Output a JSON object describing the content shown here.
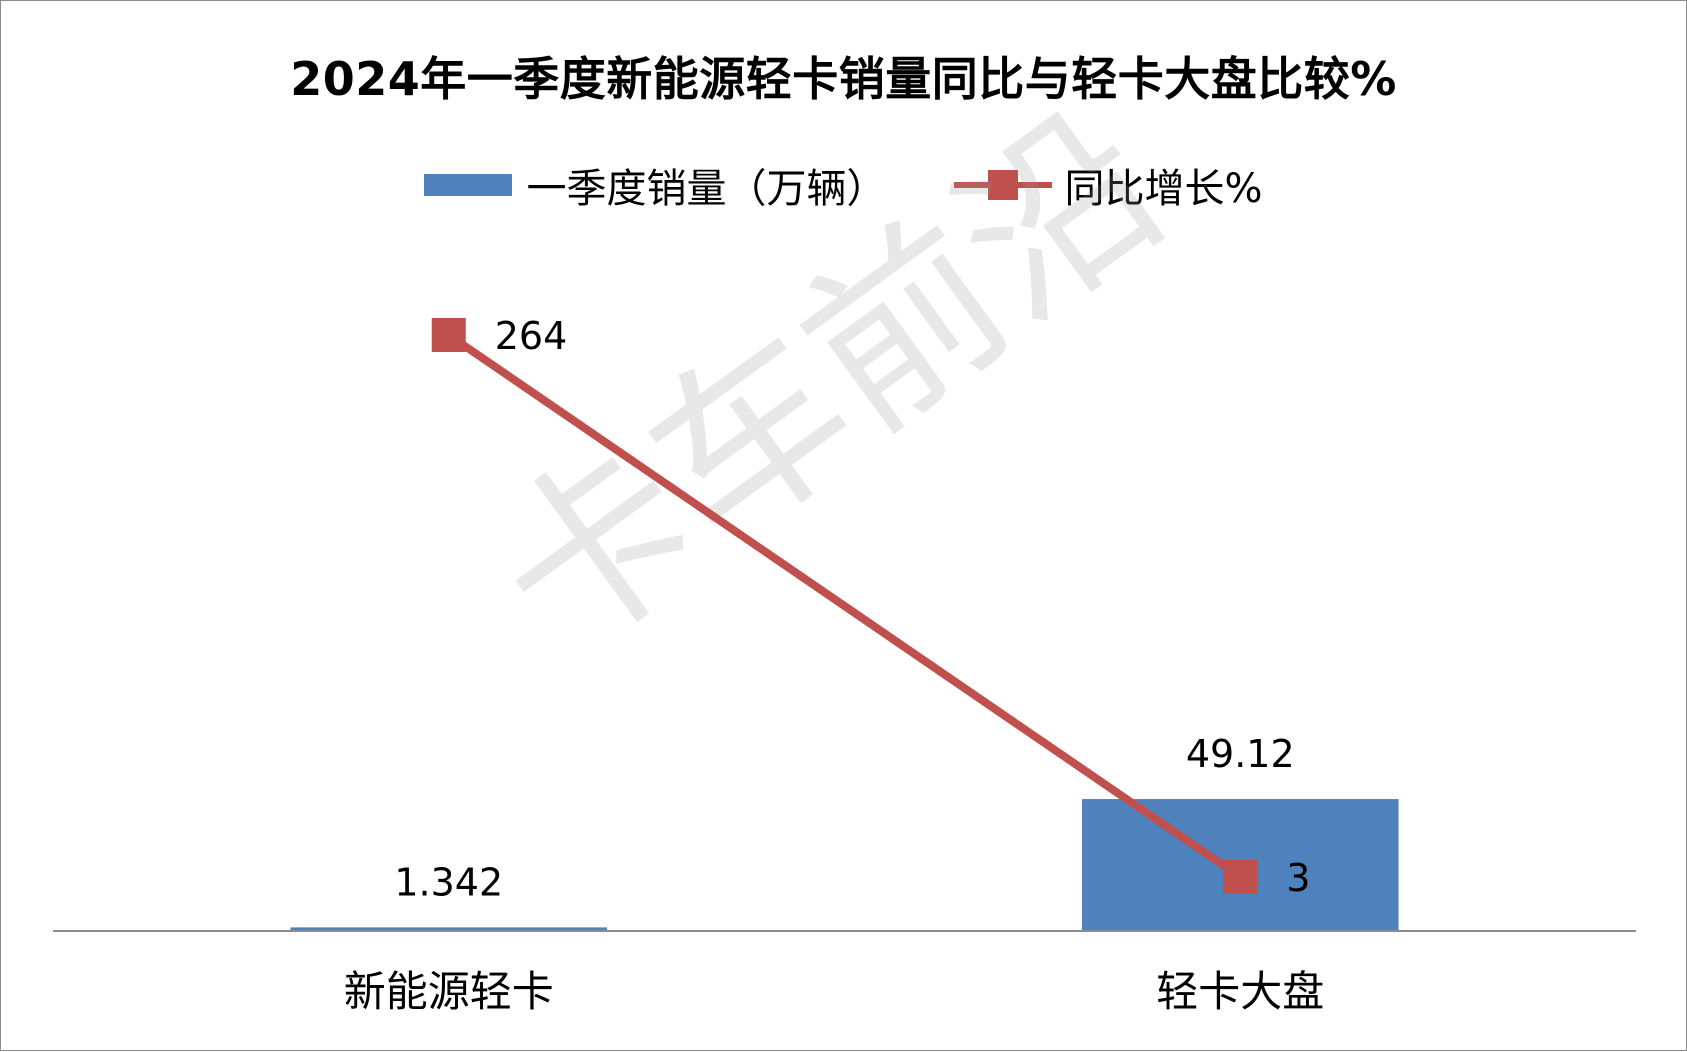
{
  "chart_data": {
    "type": "bar",
    "title": "2024年一季度新能源轻卡销量同比与轻卡大盘比较%",
    "categories": [
      "新能源轻卡",
      "轻卡大盘"
    ],
    "series": [
      {
        "name": "一季度销量（万辆）",
        "type": "bar",
        "axis": "primary",
        "values": [
          1.342,
          49.12
        ],
        "labels": [
          "1.342",
          "49.12"
        ],
        "color": "#4f81bd"
      },
      {
        "name": "同比增长%",
        "type": "line",
        "axis": "secondary",
        "values": [
          264,
          3
        ],
        "labels": [
          "264",
          "3"
        ],
        "color": "#c0504d"
      }
    ],
    "legend_position": "top",
    "grid": false,
    "axes_visible": false
  },
  "watermark": "卡车前沿"
}
